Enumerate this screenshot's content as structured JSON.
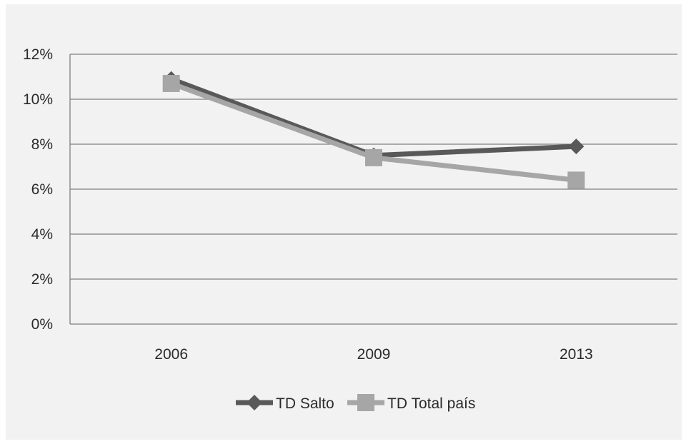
{
  "chart_data": {
    "type": "line",
    "title": "",
    "xlabel": "",
    "ylabel": "",
    "categories": [
      "2006",
      "2009",
      "2013"
    ],
    "ylim": [
      0,
      0.12
    ],
    "yticks": [
      0,
      0.02,
      0.04,
      0.06,
      0.08,
      0.1,
      0.12
    ],
    "ytick_labels": [
      "0%",
      "2%",
      "4%",
      "6%",
      "8%",
      "10%",
      "12%"
    ],
    "grid": true,
    "legend_position": "bottom",
    "series": [
      {
        "name": "TD Salto",
        "values": [
          0.109,
          0.075,
          0.079
        ],
        "color": "#595959",
        "marker": "diamond"
      },
      {
        "name": "TD Total país",
        "values": [
          0.107,
          0.074,
          0.064
        ],
        "color": "#a6a6a6",
        "marker": "square"
      }
    ]
  }
}
